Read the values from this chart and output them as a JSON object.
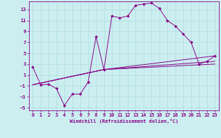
{
  "xlabel": "Windchill (Refroidissement éolien,°C)",
  "background_color": "#cceef0",
  "line_color": "#880088",
  "xlim": [
    -0.5,
    23.5
  ],
  "ylim": [
    -5.5,
    14.5
  ],
  "xticks": [
    0,
    1,
    2,
    3,
    4,
    5,
    6,
    7,
    8,
    9,
    10,
    11,
    12,
    13,
    14,
    15,
    16,
    17,
    18,
    19,
    20,
    21,
    22,
    23
  ],
  "yticks": [
    -5,
    -3,
    -1,
    1,
    3,
    5,
    7,
    9,
    11,
    13
  ],
  "grid_color": "#aadddd",
  "series_main": {
    "x": [
      0,
      1,
      2,
      3,
      4,
      5,
      6,
      7,
      8,
      9,
      10,
      11,
      12,
      13,
      14,
      15,
      16,
      17,
      18,
      19,
      20,
      21,
      22,
      23
    ],
    "y": [
      2.5,
      -0.8,
      -0.7,
      -1.5,
      -4.6,
      -2.5,
      -2.5,
      -0.3,
      8.0,
      2.0,
      11.8,
      11.5,
      11.8,
      13.8,
      14.0,
      14.2,
      13.2,
      11.0,
      10.0,
      8.5,
      7.0,
      3.0,
      3.5,
      4.5
    ]
  },
  "series_lines": [
    {
      "x": [
        0,
        9,
        23
      ],
      "y": [
        -0.8,
        2.0,
        3.5
      ]
    },
    {
      "x": [
        0,
        9,
        23
      ],
      "y": [
        -0.8,
        2.0,
        4.5
      ]
    },
    {
      "x": [
        0,
        9,
        23
      ],
      "y": [
        -0.8,
        2.0,
        3.0
      ]
    }
  ]
}
